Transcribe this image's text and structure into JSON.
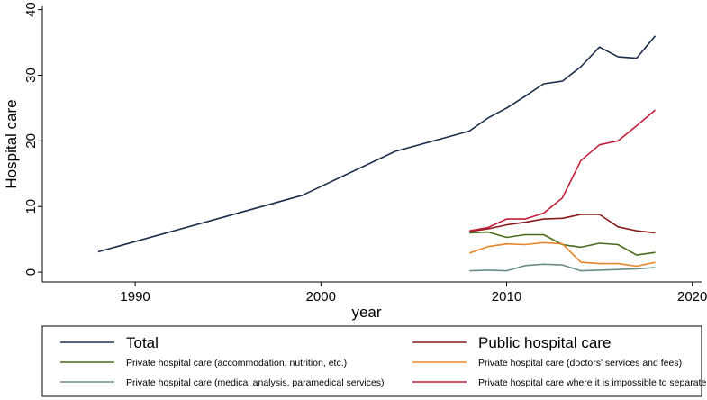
{
  "chart_data": {
    "type": "line",
    "title": "",
    "xlabel": "year",
    "ylabel": "Hospital care",
    "xlim": [
      1985,
      2020.5
    ],
    "ylim": [
      -1.5,
      40.5
    ],
    "xticks": [
      1990,
      2000,
      2010,
      2020
    ],
    "yticks": [
      0,
      10,
      20,
      30,
      40
    ],
    "grid": false,
    "legend_position": "bottom",
    "series": [
      {
        "name": "Total",
        "color": "#1a2f4b",
        "legend_size": "big",
        "points": [
          [
            1988,
            3.1
          ],
          [
            1999,
            11.7
          ],
          [
            2004,
            18.4
          ],
          [
            2008,
            21.5
          ],
          [
            2009,
            23.5
          ],
          [
            2010,
            25.0
          ],
          [
            2011,
            26.8
          ],
          [
            2012,
            28.7
          ],
          [
            2013,
            29.1
          ],
          [
            2014,
            31.3
          ],
          [
            2015,
            34.3
          ],
          [
            2016,
            32.8
          ],
          [
            2017,
            32.6
          ],
          [
            2018,
            36.0
          ]
        ]
      },
      {
        "name": "Public hospital care",
        "color": "#8b1a1a",
        "legend_size": "big",
        "points": [
          [
            2008,
            6.2
          ],
          [
            2009,
            6.6
          ],
          [
            2010,
            7.2
          ],
          [
            2011,
            7.6
          ],
          [
            2012,
            8.1
          ],
          [
            2013,
            8.2
          ],
          [
            2014,
            8.8
          ],
          [
            2015,
            8.8
          ],
          [
            2016,
            6.9
          ],
          [
            2017,
            6.3
          ],
          [
            2018,
            6.0
          ]
        ]
      },
      {
        "name": "Private hospital care (accommodation, nutrition, etc.)",
        "color": "#4a6b1e",
        "legend_size": "small",
        "points": [
          [
            2008,
            6.0
          ],
          [
            2009,
            6.1
          ],
          [
            2010,
            5.3
          ],
          [
            2011,
            5.7
          ],
          [
            2012,
            5.7
          ],
          [
            2013,
            4.2
          ],
          [
            2014,
            3.8
          ],
          [
            2015,
            4.4
          ],
          [
            2016,
            4.2
          ],
          [
            2017,
            2.6
          ],
          [
            2018,
            3.0
          ]
        ]
      },
      {
        "name": "Private hospital care (doctors' services and fees)",
        "color": "#e8852a",
        "legend_size": "small",
        "points": [
          [
            2008,
            2.9
          ],
          [
            2009,
            3.9
          ],
          [
            2010,
            4.3
          ],
          [
            2011,
            4.2
          ],
          [
            2012,
            4.5
          ],
          [
            2013,
            4.3
          ],
          [
            2014,
            1.5
          ],
          [
            2015,
            1.3
          ],
          [
            2016,
            1.3
          ],
          [
            2017,
            0.9
          ],
          [
            2018,
            1.5
          ]
        ]
      },
      {
        "name": "Private hospital care (medical analysis, paramedical services)",
        "color": "#6b8e88",
        "legend_size": "small",
        "points": [
          [
            2008,
            0.2
          ],
          [
            2009,
            0.3
          ],
          [
            2010,
            0.2
          ],
          [
            2011,
            1.0
          ],
          [
            2012,
            1.2
          ],
          [
            2013,
            1.1
          ],
          [
            2014,
            0.2
          ],
          [
            2015,
            0.3
          ],
          [
            2016,
            0.4
          ],
          [
            2017,
            0.5
          ],
          [
            2018,
            0.7
          ]
        ]
      },
      {
        "name": "Private hospital care where it is impossible to separate",
        "color": "#c41e3a",
        "legend_size": "small",
        "points": [
          [
            2008,
            6.3
          ],
          [
            2009,
            6.8
          ],
          [
            2010,
            8.1
          ],
          [
            2011,
            8.1
          ],
          [
            2012,
            9.0
          ],
          [
            2013,
            11.3
          ],
          [
            2014,
            17.0
          ],
          [
            2015,
            19.4
          ],
          [
            2016,
            20.0
          ],
          [
            2017,
            22.3
          ],
          [
            2018,
            24.7
          ]
        ]
      }
    ]
  }
}
